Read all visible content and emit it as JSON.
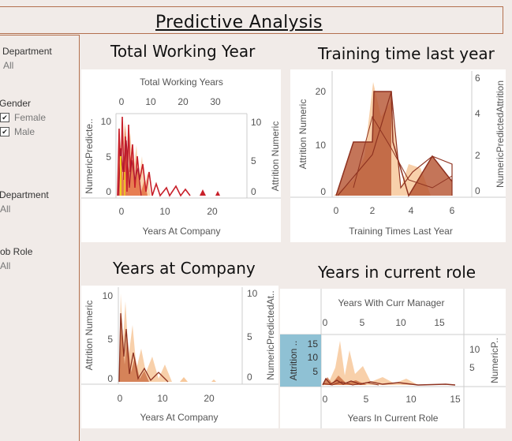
{
  "page": {
    "title": "Predictive Analysis"
  },
  "filters": {
    "department_1": {
      "label": "Department",
      "value": "All"
    },
    "gender": {
      "label": "Gender",
      "options": [
        {
          "label": "Female",
          "checked": true
        },
        {
          "label": "Male",
          "checked": true
        }
      ]
    },
    "department_2": {
      "label": "Department",
      "value": "All"
    },
    "job_role": {
      "label": "ob Role",
      "value": "All"
    }
  },
  "charts": {
    "total_working_year": {
      "title": "Total Working Year",
      "top_axis_title": "Total Working Years",
      "top_ticks": [
        "0",
        "10",
        "20",
        "30"
      ],
      "left_label": "NumericPredicte..",
      "right_label": "Attrition Numeric",
      "left_ticks": [
        "10",
        "5",
        "0"
      ],
      "right_ticks": [
        "10",
        "5",
        "0"
      ],
      "bottom_ticks": [
        "0",
        "10",
        "20"
      ],
      "xlabel": "Years At Company"
    },
    "training_time": {
      "title": "Training time last year",
      "left_label": "Attrition Numeric",
      "right_label": "NumericPredictedAttrition",
      "left_ticks": [
        "20",
        "10",
        "0"
      ],
      "right_ticks": [
        "6",
        "4",
        "2",
        "0"
      ],
      "bottom_ticks": [
        "0",
        "2",
        "4",
        "6"
      ],
      "xlabel": "Training Times Last Year"
    },
    "years_at_company": {
      "title": "Years at Company",
      "left_label": "Attrition Numeric",
      "right_label": "NumericPredictedAt..",
      "left_ticks": [
        "10",
        "5",
        "0"
      ],
      "right_ticks": [
        "10",
        "5",
        "0"
      ],
      "bottom_ticks": [
        "0",
        "10",
        "20"
      ],
      "xlabel": "Years At Company"
    },
    "years_current_role": {
      "title": "Years in current role",
      "top_axis_title": "Years With Curr Manager",
      "top_ticks": [
        "0",
        "5",
        "10",
        "15"
      ],
      "left_label": "Attrition ..",
      "right_label": "NumericP..",
      "left_ticks": [
        "15",
        "10",
        "5"
      ],
      "right_ticks": [
        "10",
        "5"
      ],
      "bottom_ticks": [
        "0",
        "5",
        "10",
        "15"
      ],
      "xlabel": "Years In Current Role"
    }
  },
  "colors": {
    "light": "#f7c89b",
    "mid": "#e8a06e",
    "dark": "#a2402a",
    "red": "#c8202a",
    "blue_bar": "#8fc1d4",
    "border": "#b3704e"
  }
}
